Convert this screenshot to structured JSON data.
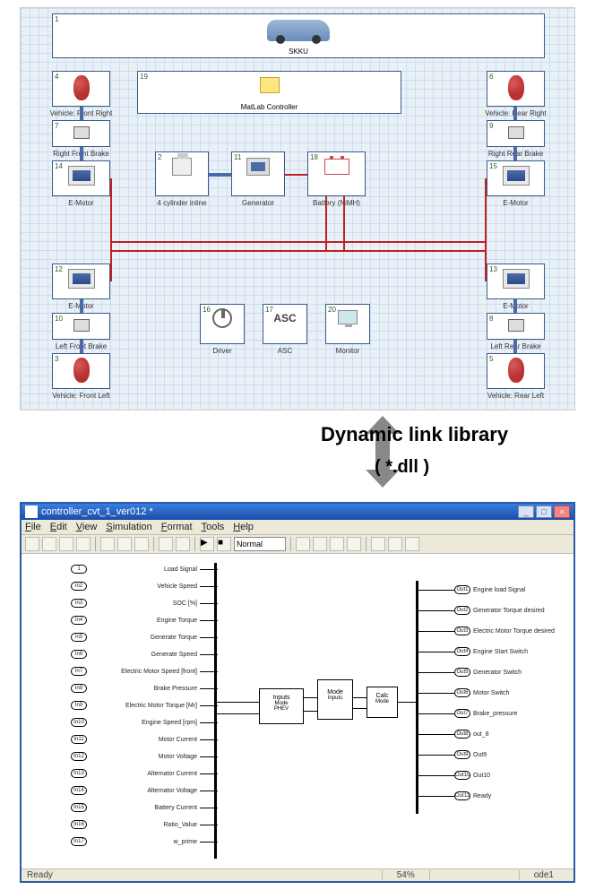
{
  "top": {
    "banner_label": "SKKU",
    "matlab_label": "MatLab Controller",
    "blocks": {
      "front_right": {
        "num": "4",
        "label": "Vehicle: Front Right"
      },
      "rear_right": {
        "num": "6",
        "label": "Vehicle: Rear Right"
      },
      "right_front_brake": {
        "num": "7",
        "label": "Right Front Brake"
      },
      "right_rear_brake": {
        "num": "9",
        "label": "Right Rear Brake"
      },
      "emotor_14": {
        "num": "14",
        "label": "E-Motor"
      },
      "emotor_15": {
        "num": "15",
        "label": "E-Motor"
      },
      "emotor_12": {
        "num": "12",
        "label": "E-Motor"
      },
      "emotor_13": {
        "num": "13",
        "label": "E-Motor"
      },
      "left_front_brake": {
        "num": "10",
        "label": "Left Front Brake"
      },
      "left_rear_brake": {
        "num": "8",
        "label": "Left Rear Brake"
      },
      "front_left": {
        "num": "3",
        "label": "Vehicle: Front Left"
      },
      "rear_left": {
        "num": "5",
        "label": "Vehicle: Rear Left"
      },
      "engine": {
        "num": "2",
        "label": "4 cylinder inline"
      },
      "generator": {
        "num": "11",
        "label": "Generator"
      },
      "battery": {
        "num": "18",
        "label": "Battery (NiMH)"
      },
      "driver": {
        "num": "16",
        "label": "Driver"
      },
      "asc": {
        "num": "17",
        "label": "ASC"
      },
      "monitor": {
        "num": "20",
        "label": "Monitor"
      },
      "matlab_num": "19",
      "banner_num": "1"
    }
  },
  "arrow": {
    "title": "Dynamic link library",
    "sub": "( *.dll )"
  },
  "sim": {
    "title": "controller_cvt_1_ver012 *",
    "menu": [
      "File",
      "Edit",
      "View",
      "Simulation",
      "Format",
      "Tools",
      "Help"
    ],
    "mode": "Normal",
    "status_ready": "Ready",
    "status_zoom": "54%",
    "status_ode": "ode1",
    "inputs": [
      {
        "id": "1",
        "big": "Load Signal"
      },
      {
        "id": "In2",
        "big": "Vehicle Speed"
      },
      {
        "id": "In3",
        "big": "SOC [%]"
      },
      {
        "id": "In4",
        "big": "Engine Torque"
      },
      {
        "id": "In5",
        "big": "Generate Torque"
      },
      {
        "id": "In6",
        "big": "Generate Speed"
      },
      {
        "id": "In7",
        "big": "Electric Motor Speed [front]"
      },
      {
        "id": "In8",
        "big": "Brake Pressure"
      },
      {
        "id": "In9",
        "big": "Electric Motor Torque [Mr]"
      },
      {
        "id": "In10",
        "big": "Engine Speed [rpm]"
      },
      {
        "id": "In11",
        "big": "Motor Current"
      },
      {
        "id": "In12",
        "big": "Motor Voltage"
      },
      {
        "id": "In13",
        "big": "Alternator Current"
      },
      {
        "id": "In14",
        "big": "Alternator Voltage"
      },
      {
        "id": "In15",
        "big": "Battery Current"
      },
      {
        "id": "In16",
        "big": "Ratio_Value"
      },
      {
        "id": "In17",
        "big": "w_prime"
      }
    ],
    "outputs": [
      {
        "id": "Out1",
        "big": "Engine load Signal"
      },
      {
        "id": "Out2",
        "big": "Generator Torque desired"
      },
      {
        "id": "Out3",
        "big": "Electric Motor Torque desired"
      },
      {
        "id": "Out4",
        "big": "Engine Start Switch"
      },
      {
        "id": "Out5",
        "big": "Generator Switch"
      },
      {
        "id": "Out6",
        "big": "Motor Switch"
      },
      {
        "id": "Out7",
        "big": "Brake_pressure"
      },
      {
        "id": "Out8",
        "big": "out_8"
      },
      {
        "id": "Out9",
        "big": "Out9"
      },
      {
        "id": "Out10",
        "big": "Out10"
      },
      {
        "id": "Out11",
        "big": "Ready"
      }
    ],
    "center": {
      "b1": {
        "t": "Inputs",
        "s": "Mode",
        "s2": "PHEV"
      },
      "b2": {
        "t": "Mode",
        "s": "Inputs"
      },
      "b3": {
        "t": "Calc",
        "s": "Mode"
      }
    }
  }
}
